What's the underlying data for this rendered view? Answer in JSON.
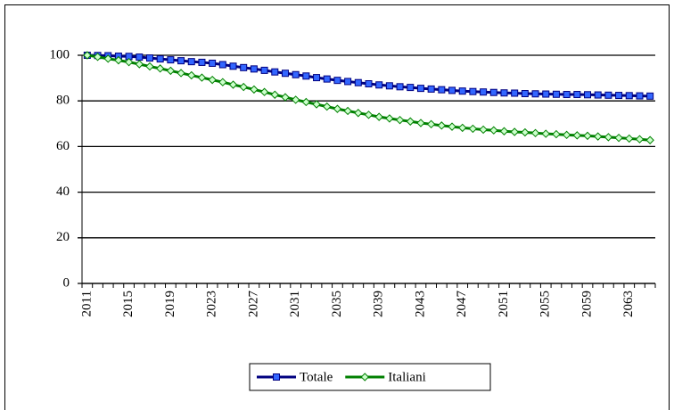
{
  "chart_data": {
    "type": "line",
    "categories": [
      "2011",
      null,
      null,
      null,
      "2015",
      null,
      null,
      null,
      "2019",
      null,
      null,
      null,
      "2023",
      null,
      null,
      null,
      "2027",
      null,
      null,
      null,
      "2031",
      null,
      null,
      null,
      "2035",
      null,
      null,
      null,
      "2039",
      null,
      null,
      null,
      "2043",
      null,
      null,
      null,
      "2047",
      null,
      null,
      null,
      "2051",
      null,
      null,
      null,
      "2055",
      null,
      null,
      null,
      "2059",
      null,
      null,
      null,
      "2063",
      null,
      null
    ],
    "series": [
      {
        "name": "Totale",
        "color": "#000080",
        "marker": "square",
        "marker_color": "#3366ff",
        "values": [
          100,
          99.9,
          99.8,
          99.6,
          99.5,
          99.2,
          98.8,
          98.4,
          98.0,
          97.6,
          97.2,
          96.9,
          96.5,
          95.9,
          95.2,
          94.6,
          94.0,
          93.4,
          92.7,
          92.1,
          91.5,
          90.9,
          90.2,
          89.6,
          89.0,
          88.5,
          88.0,
          87.5,
          87.0,
          86.6,
          86.2,
          85.9,
          85.5,
          85.2,
          84.9,
          84.6,
          84.3,
          84.1,
          83.9,
          83.7,
          83.5,
          83.4,
          83.2,
          83.1,
          83.0,
          82.9,
          82.8,
          82.8,
          82.7,
          82.6,
          82.5,
          82.4,
          82.3,
          82.2,
          82.1
        ]
      },
      {
        "name": "Italiani",
        "color": "#008000",
        "marker": "diamond",
        "marker_color": "#ccffcc",
        "values": [
          100,
          99.3,
          98.5,
          97.8,
          97.0,
          96.1,
          95.1,
          94.2,
          93.2,
          92.2,
          91.2,
          90.2,
          89.2,
          88.2,
          87.1,
          86.1,
          85.0,
          83.9,
          82.7,
          81.6,
          80.5,
          79.5,
          78.5,
          77.5,
          76.5,
          75.6,
          74.7,
          73.9,
          73.0,
          72.3,
          71.6,
          71.0,
          70.3,
          69.8,
          69.2,
          68.7,
          68.2,
          67.8,
          67.4,
          67.1,
          66.7,
          66.4,
          66.2,
          65.9,
          65.6,
          65.4,
          65.1,
          64.9,
          64.7,
          64.4,
          64.1,
          63.8,
          63.5,
          63.2,
          62.8
        ]
      }
    ],
    "ylim": [
      0,
      100
    ],
    "yticks": [
      0,
      20,
      40,
      60,
      80,
      100
    ],
    "grid": true,
    "legend": "bottom"
  }
}
